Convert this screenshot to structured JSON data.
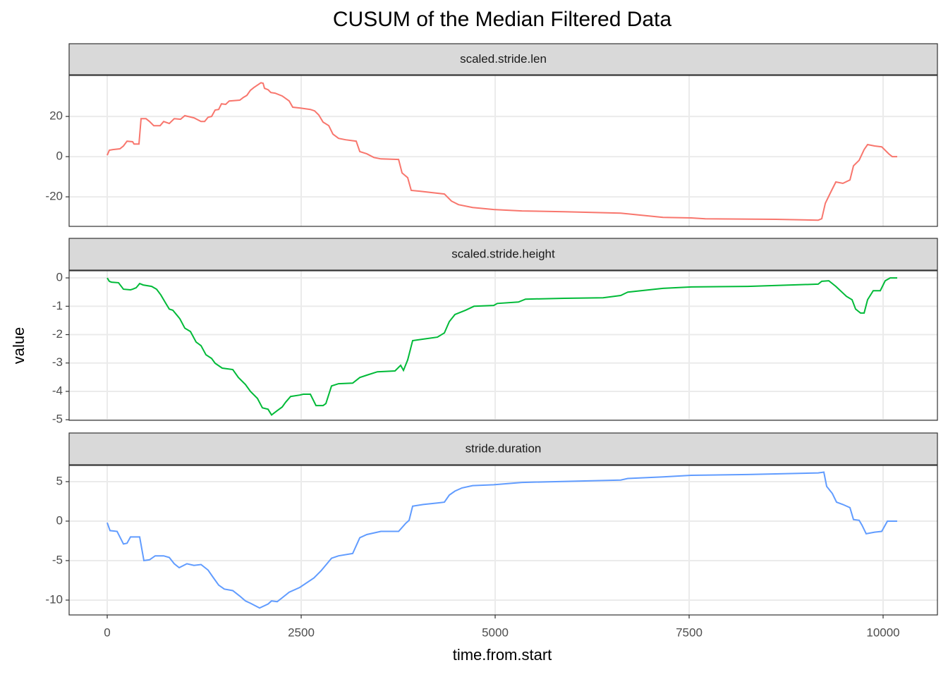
{
  "chart_data": {
    "type": "line",
    "title": "CUSUM of the Median Filtered Data",
    "xlabel": "time.from.start",
    "ylabel": "value",
    "xlim": [
      -491,
      10700
    ],
    "xticks": [
      0,
      2500,
      5000,
      7500,
      10000
    ],
    "grid": true,
    "panels": [
      {
        "strip": "scaled.stride.len",
        "ylim": [
          -34.7,
          40.4
        ],
        "yticks": [
          -20,
          0,
          20
        ],
        "series": [
          {
            "color": "#F8766D",
            "x": [
              0,
              27,
              73,
              164,
              209,
              255,
              327,
              345,
              409,
              436,
              500,
              545,
              600,
              682,
              727,
              800,
              864,
              945,
              1000,
              1118,
              1209,
              1255,
              1300,
              1345,
              1391,
              1436,
              1473,
              1527,
              1573,
              1709,
              1755,
              1800,
              1845,
              1891,
              1982,
              2009,
              2027,
              2073,
              2109,
              2164,
              2255,
              2345,
              2391,
              2491,
              2618,
              2673,
              2727,
              2782,
              2855,
              2909,
              2982,
              3073,
              3209,
              3255,
              3345,
              3436,
              3527,
              3755,
              3800,
              3873,
              3918,
              4027,
              4345,
              4436,
              4527,
              4709,
              4982,
              5345,
              5891,
              6618,
              6800,
              7164,
              7527,
              7709,
              8618,
              9164,
              9209,
              9255,
              9327,
              9391,
              9482,
              9573,
              9618,
              9691,
              9755,
              9800,
              9891,
              9982,
              10073,
              10118,
              10182
            ],
            "values": [
              0.7,
              3.2,
              3.5,
              3.9,
              5.3,
              7.7,
              7.4,
              6.3,
              6.3,
              18.9,
              18.9,
              17.5,
              15.4,
              15.4,
              17.5,
              16.5,
              18.9,
              18.6,
              20.4,
              19.3,
              17.5,
              17.5,
              19.6,
              20,
              23.2,
              23.5,
              26.3,
              26,
              27.7,
              28.1,
              29.5,
              30.5,
              33,
              34.4,
              36.8,
              36.5,
              34,
              33.3,
              31.9,
              31.6,
              30.2,
              27.7,
              24.6,
              24.2,
              23.5,
              22.8,
              20.7,
              17.2,
              15.4,
              11.2,
              9.1,
              8.4,
              7.7,
              2.5,
              1.4,
              -0.4,
              -1.1,
              -1.4,
              -8.1,
              -10.5,
              -16.8,
              -17.2,
              -18.6,
              -22.1,
              -23.9,
              -25.3,
              -26.3,
              -27,
              -27.4,
              -28.1,
              -28.8,
              -30.2,
              -30.5,
              -30.9,
              -31.2,
              -31.6,
              -30.9,
              -23.2,
              -17.5,
              -12.6,
              -13.3,
              -11.6,
              -4.6,
              -1.8,
              3.5,
              6,
              5.3,
              4.9,
              1.4,
              0,
              0
            ]
          }
        ]
      },
      {
        "strip": "scaled.stride.height",
        "ylim": [
          -5.02,
          0.25
        ],
        "yticks": [
          -5,
          -4,
          -3,
          -2,
          -1,
          0
        ],
        "series": [
          {
            "color": "#00BA38",
            "x": [
              0,
              27,
              55,
              145,
              209,
              300,
              327,
              373,
              418,
              464,
              573,
              636,
              691,
              755,
              800,
              845,
              936,
              1000,
              1073,
              1145,
              1209,
              1273,
              1345,
              1391,
              1482,
              1618,
              1691,
              1782,
              1845,
              1936,
              2000,
              2073,
              2118,
              2191,
              2255,
              2300,
              2364,
              2482,
              2527,
              2618,
              2691,
              2782,
              2818,
              2891,
              2982,
              3164,
              3255,
              3345,
              3482,
              3709,
              3782,
              3818,
              3873,
              3936,
              4073,
              4255,
              4345,
              4409,
              4482,
              4618,
              4727,
              4982,
              5027,
              5300,
              5391,
              5891,
              6391,
              6618,
              6709,
              7164,
              7527,
              8255,
              9164,
              9209,
              9300,
              9391,
              9527,
              9600,
              9645,
              9709,
              9755,
              9800,
              9873,
              9964,
              10027,
              10091,
              10182
            ],
            "values": [
              0,
              -0.12,
              -0.15,
              -0.17,
              -0.4,
              -0.42,
              -0.4,
              -0.35,
              -0.2,
              -0.25,
              -0.3,
              -0.4,
              -0.6,
              -0.9,
              -1.1,
              -1.14,
              -1.44,
              -1.77,
              -1.89,
              -2.26,
              -2.39,
              -2.71,
              -2.84,
              -3.01,
              -3.18,
              -3.23,
              -3.51,
              -3.76,
              -4,
              -4.25,
              -4.58,
              -4.63,
              -4.83,
              -4.68,
              -4.55,
              -4.38,
              -4.18,
              -4.13,
              -4.1,
              -4.1,
              -4.5,
              -4.5,
              -4.43,
              -3.81,
              -3.73,
              -3.71,
              -3.51,
              -3.43,
              -3.31,
              -3.28,
              -3.08,
              -3.26,
              -2.89,
              -2.21,
              -2.16,
              -2.09,
              -1.94,
              -1.54,
              -1.29,
              -1.14,
              -1,
              -0.97,
              -0.9,
              -0.85,
              -0.75,
              -0.72,
              -0.7,
              -0.62,
              -0.5,
              -0.37,
              -0.32,
              -0.3,
              -0.22,
              -0.12,
              -0.1,
              -0.3,
              -0.65,
              -0.77,
              -1.1,
              -1.24,
              -1.24,
              -0.77,
              -0.45,
              -0.45,
              -0.1,
              0,
              0
            ]
          }
        ]
      },
      {
        "strip": "stride.duration",
        "ylim": [
          -11.88,
          7.05
        ],
        "yticks": [
          -10,
          -5,
          0,
          5
        ],
        "series": [
          {
            "color": "#619CFF",
            "x": [
              0,
              36,
              127,
              209,
              255,
              300,
              418,
              473,
              545,
              618,
              727,
              800,
              864,
              927,
              1027,
              1118,
              1209,
              1300,
              1364,
              1436,
              1509,
              1618,
              1709,
              1782,
              1845,
              1964,
              2073,
              2118,
              2191,
              2255,
              2345,
              2482,
              2664,
              2755,
              2891,
              2982,
              3164,
              3255,
              3345,
              3527,
              3755,
              3845,
              3891,
              3936,
              4073,
              4255,
              4345,
              4409,
              4482,
              4573,
              4709,
              4982,
              5345,
              6618,
              6709,
              7164,
              7527,
              8255,
              9164,
              9236,
              9273,
              9345,
              9400,
              9482,
              9573,
              9618,
              9691,
              9727,
              9782,
              9891,
              9982,
              10055,
              10182
            ],
            "values": [
              -0.2,
              -1.2,
              -1.3,
              -2.9,
              -2.8,
              -2,
              -2,
              -5,
              -4.9,
              -4.4,
              -4.4,
              -4.6,
              -5.4,
              -5.9,
              -5.4,
              -5.6,
              -5.5,
              -6.2,
              -7.1,
              -8.1,
              -8.6,
              -8.8,
              -9.5,
              -10.1,
              -10.4,
              -11,
              -10.5,
              -10.1,
              -10.2,
              -9.7,
              -9,
              -8.4,
              -7.2,
              -6.3,
              -4.7,
              -4.4,
              -4.1,
              -2.1,
              -1.7,
              -1.3,
              -1.3,
              -0.3,
              0.1,
              1.9,
              2.1,
              2.3,
              2.4,
              3.3,
              3.8,
              4.2,
              4.5,
              4.6,
              4.9,
              5.2,
              5.4,
              5.6,
              5.8,
              5.9,
              6.1,
              6.2,
              4.4,
              3.5,
              2.4,
              2.1,
              1.7,
              0.2,
              0.1,
              -0.5,
              -1.6,
              -1.4,
              -1.3,
              0,
              0
            ]
          }
        ]
      }
    ]
  }
}
